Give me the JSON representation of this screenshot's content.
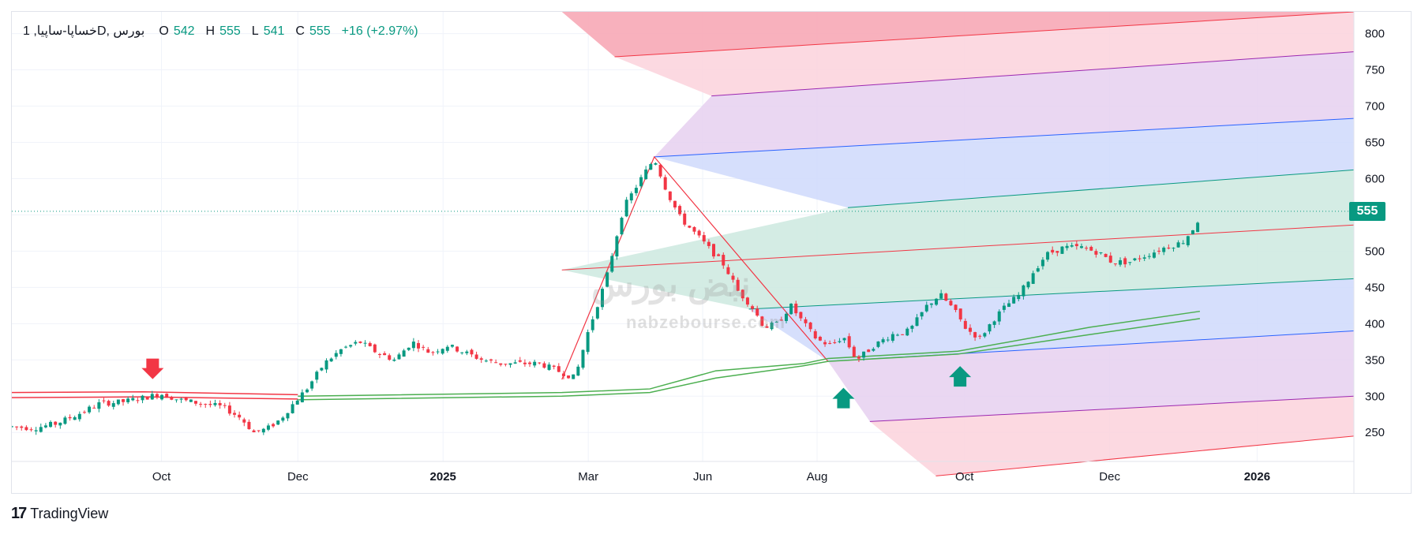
{
  "header": {
    "symbol": "خساپا-ساپیا, 1D, بورس",
    "open_label": "O",
    "open": "542",
    "high_label": "H",
    "high": "555",
    "low_label": "L",
    "low": "541",
    "close_label": "C",
    "close": "555",
    "change": "+16 (+2.97%)"
  },
  "last_price_badge": "555",
  "footer": {
    "brand": "TradingView",
    "logo_glyph": "17"
  },
  "watermark": {
    "url": "nabzebourse.com",
    "logo_text": "نبض بورس"
  },
  "colors": {
    "up": "#089981",
    "down": "#f23645",
    "grid": "#f0f3fa",
    "fan_red": "#f7a8b6",
    "fan_pink": "#fbd2dc",
    "fan_purple": "#e6d0f0",
    "fan_blue": "#cfd9fb",
    "fan_green": "#cde9df",
    "ma_green": "#4caf50",
    "ma_red": "#f23645"
  },
  "chart_data": {
    "type": "candlestick",
    "title": "خساپا-ساپیا, 1D, بورس",
    "timeframe": "1D",
    "y_ticks": [
      250,
      300,
      350,
      400,
      450,
      500,
      550,
      600,
      650,
      700,
      750,
      800
    ],
    "ylim": [
      210,
      830
    ],
    "x_ticks": [
      "Oct",
      "Dec",
      "2025",
      "Mar",
      "Jun",
      "Aug",
      "Oct",
      "Dec",
      "2026"
    ],
    "x_tick_days": [
      68,
      130,
      196,
      262,
      314,
      366,
      433,
      499,
      566
    ],
    "x_range_days": [
      0,
      610
    ],
    "last_price": 555,
    "price_path": [
      [
        0,
        258
      ],
      [
        10,
        256
      ],
      [
        20,
        262
      ],
      [
        30,
        275
      ],
      [
        40,
        290
      ],
      [
        50,
        292
      ],
      [
        60,
        298
      ],
      [
        68,
        303
      ],
      [
        76,
        295
      ],
      [
        86,
        290
      ],
      [
        96,
        285
      ],
      [
        104,
        270
      ],
      [
        110,
        250
      ],
      [
        116,
        255
      ],
      [
        122,
        268
      ],
      [
        128,
        290
      ],
      [
        134,
        310
      ],
      [
        142,
        345
      ],
      [
        150,
        365
      ],
      [
        158,
        375
      ],
      [
        166,
        360
      ],
      [
        174,
        350
      ],
      [
        182,
        375
      ],
      [
        190,
        360
      ],
      [
        198,
        370
      ],
      [
        206,
        360
      ],
      [
        214,
        350
      ],
      [
        222,
        345
      ],
      [
        232,
        345
      ],
      [
        240,
        345
      ],
      [
        248,
        335
      ],
      [
        256,
        325
      ],
      [
        262,
        390
      ],
      [
        270,
        460
      ],
      [
        278,
        560
      ],
      [
        286,
        600
      ],
      [
        292,
        628
      ],
      [
        298,
        580
      ],
      [
        304,
        545
      ],
      [
        312,
        520
      ],
      [
        318,
        500
      ],
      [
        324,
        480
      ],
      [
        330,
        445
      ],
      [
        336,
        425
      ],
      [
        342,
        395
      ],
      [
        348,
        400
      ],
      [
        354,
        425
      ],
      [
        360,
        400
      ],
      [
        366,
        378
      ],
      [
        372,
        370
      ],
      [
        378,
        382
      ],
      [
        384,
        350
      ],
      [
        392,
        370
      ],
      [
        400,
        385
      ],
      [
        408,
        390
      ],
      [
        416,
        425
      ],
      [
        422,
        440
      ],
      [
        428,
        420
      ],
      [
        434,
        392
      ],
      [
        440,
        380
      ],
      [
        446,
        405
      ],
      [
        452,
        425
      ],
      [
        458,
        440
      ],
      [
        464,
        470
      ],
      [
        470,
        495
      ],
      [
        478,
        505
      ],
      [
        486,
        505
      ],
      [
        494,
        498
      ],
      [
        500,
        485
      ],
      [
        508,
        485
      ],
      [
        516,
        495
      ],
      [
        524,
        505
      ],
      [
        532,
        512
      ],
      [
        538,
        535
      ],
      [
        541,
        555
      ]
    ],
    "pitchfork": {
      "pivot_a": [
        250,
        323
      ],
      "pivot_b": [
        292,
        630
      ],
      "pivot_c": [
        371,
        348
      ],
      "median_line": [
        [
          250,
          474
        ],
        [
          610,
          536
        ]
      ],
      "levels_above": [
        [
          380,
          560,
          610,
          612
        ],
        [
          292,
          630,
          610,
          683
        ],
        [
          318,
          714,
          610,
          775
        ],
        [
          274,
          768,
          610,
          830
        ]
      ],
      "levels_below": [
        [
          335,
          420,
          610,
          462
        ],
        [
          371,
          348,
          610,
          390
        ],
        [
          390,
          265,
          610,
          300
        ],
        [
          420,
          190,
          610,
          245
        ]
      ]
    },
    "moving_averages": [
      {
        "color": "green",
        "values": [
          [
            130,
            300
          ],
          [
            250,
            305
          ],
          [
            290,
            310
          ],
          [
            320,
            335
          ],
          [
            360,
            345
          ],
          [
            371,
            352
          ],
          [
            430,
            362
          ],
          [
            490,
            395
          ],
          [
            540,
            417
          ]
        ]
      },
      {
        "color": "green",
        "values": [
          [
            130,
            295
          ],
          [
            250,
            300
          ],
          [
            290,
            305
          ],
          [
            320,
            325
          ],
          [
            360,
            342
          ],
          [
            371,
            348
          ],
          [
            430,
            358
          ],
          [
            490,
            385
          ],
          [
            540,
            407
          ]
        ]
      },
      {
        "color": "red",
        "values": [
          [
            0,
            305
          ],
          [
            60,
            306
          ],
          [
            130,
            302
          ]
        ]
      },
      {
        "color": "red",
        "values": [
          [
            0,
            298
          ],
          [
            60,
            299
          ],
          [
            130,
            296
          ]
        ]
      }
    ],
    "markers": [
      {
        "type": "down-arrow",
        "day": 64,
        "price": 330,
        "color": "red"
      },
      {
        "type": "up-arrow",
        "day": 378,
        "price": 305,
        "color": "green"
      },
      {
        "type": "up-arrow",
        "day": 431,
        "price": 335,
        "color": "green"
      }
    ]
  }
}
